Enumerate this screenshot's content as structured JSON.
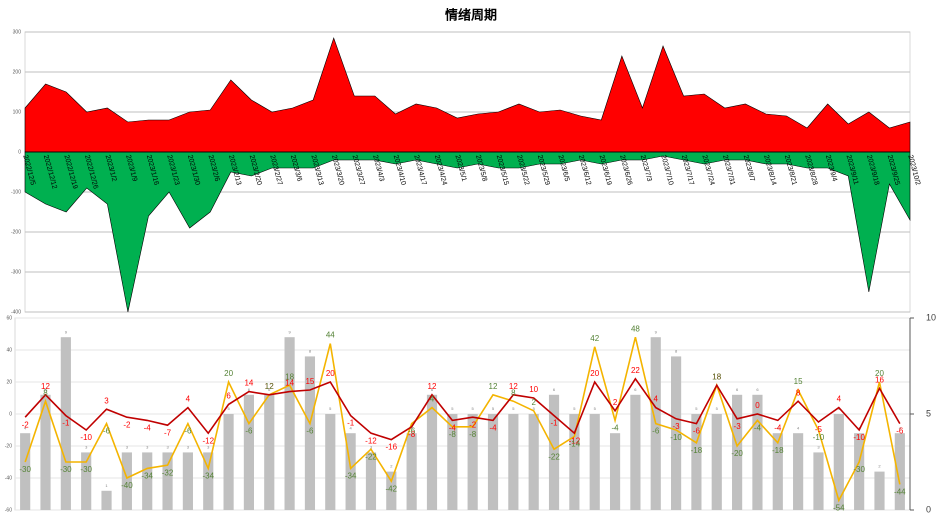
{
  "chart_data": [
    {
      "type": "area",
      "title": "情绪周期",
      "categories": [
        "2022/12/5",
        "2022/12/12",
        "2022/12/19",
        "2022/12/26",
        "2023/1/2",
        "2023/1/9",
        "2023/1/16",
        "2023/1/23",
        "2023/1/30",
        "2023/2/6",
        "2023/2/13",
        "2023/2/20",
        "2023/2/27",
        "2023/3/6",
        "2023/3/13",
        "2023/3/20",
        "2023/3/27",
        "2023/4/3",
        "2023/4/10",
        "2023/4/17",
        "2023/4/24",
        "2023/5/1",
        "2023/5/8",
        "2023/5/15",
        "2023/5/22",
        "2023/5/29",
        "2023/6/5",
        "2023/6/12",
        "2023/6/19",
        "2023/6/26",
        "2023/7/3",
        "2023/7/10",
        "2023/7/17",
        "2023/7/24",
        "2023/7/31",
        "2023/8/7",
        "2023/8/14",
        "2023/8/21",
        "2023/8/28",
        "2023/9/4",
        "2023/9/11",
        "2023/9/18",
        "2023/9/25",
        "2023/10/2"
      ],
      "series": [
        {
          "color": "#ff0000",
          "values": [
            110,
            170,
            150,
            100,
            110,
            75,
            80,
            80,
            100,
            105,
            180,
            130,
            100,
            110,
            130,
            285,
            140,
            140,
            95,
            120,
            110,
            85,
            95,
            100,
            120,
            100,
            105,
            90,
            80,
            240,
            110,
            265,
            140,
            145,
            110,
            120,
            95,
            90,
            60,
            120,
            70,
            100,
            60,
            75
          ]
        },
        {
          "color": "#00b050",
          "values": [
            -100,
            -130,
            -150,
            -90,
            -130,
            -400,
            -160,
            -100,
            -190,
            -150,
            -50,
            -60,
            -40,
            -40,
            -40,
            -20,
            -20,
            -20,
            -30,
            -20,
            -30,
            -40,
            -30,
            -40,
            -40,
            -30,
            -30,
            -20,
            -30,
            -20,
            -20,
            -10,
            -20,
            -30,
            -20,
            -20,
            -30,
            -30,
            -40,
            -40,
            -60,
            -350,
            -80,
            -170
          ]
        }
      ],
      "ylim": [
        -400,
        300
      ],
      "yticks": [
        -400,
        -300,
        -200,
        -100,
        0,
        100,
        200,
        300
      ],
      "grid": true
    },
    {
      "type": "combo",
      "bars": {
        "color": "#c0c0c0",
        "axis": "y2",
        "values": [
          4,
          6,
          9,
          3,
          1,
          3,
          3,
          3,
          3,
          3,
          5,
          6,
          6,
          9,
          8,
          5,
          4,
          3,
          2,
          4,
          6,
          5,
          5,
          5,
          5,
          5,
          6,
          5,
          5,
          4,
          6,
          9,
          8,
          5,
          5,
          6,
          6,
          4,
          4,
          3,
          5,
          4,
          2,
          4
        ]
      },
      "series": [
        {
          "color": "#c00000",
          "label_color": "#ff0000",
          "values": [
            -2,
            12,
            -1,
            -10,
            3,
            -2,
            -4,
            -7,
            4,
            -12,
            6,
            14,
            12,
            14,
            15,
            20,
            -1,
            -12,
            -16,
            -8,
            12,
            -4,
            -2,
            -4,
            12,
            10,
            -1,
            -12,
            20,
            2,
            22,
            4,
            -3,
            -6,
            18,
            -3,
            0,
            -4,
            8,
            -5,
            4,
            -10,
            16,
            -6
          ]
        },
        {
          "color": "#f4b400",
          "label_color": "#548235",
          "values": [
            -30,
            8,
            -30,
            -30,
            -6,
            -40,
            -34,
            -32,
            -6,
            -34,
            20,
            -6,
            12,
            18,
            -6,
            44,
            -34,
            -22,
            -42,
            -6,
            4,
            -8,
            -8,
            12,
            8,
            2,
            -22,
            -14,
            42,
            -4,
            48,
            -6,
            -10,
            -18,
            18,
            -20,
            -4,
            -18,
            15,
            -10,
            -54,
            -30,
            20,
            -44
          ]
        }
      ],
      "ylim": [
        -60,
        60
      ],
      "yticks": [
        -60,
        -40,
        -20,
        0,
        20,
        40,
        60
      ],
      "y2lim": [
        0,
        10
      ],
      "y2ticks": [
        0,
        5,
        10
      ],
      "grid": true
    }
  ]
}
